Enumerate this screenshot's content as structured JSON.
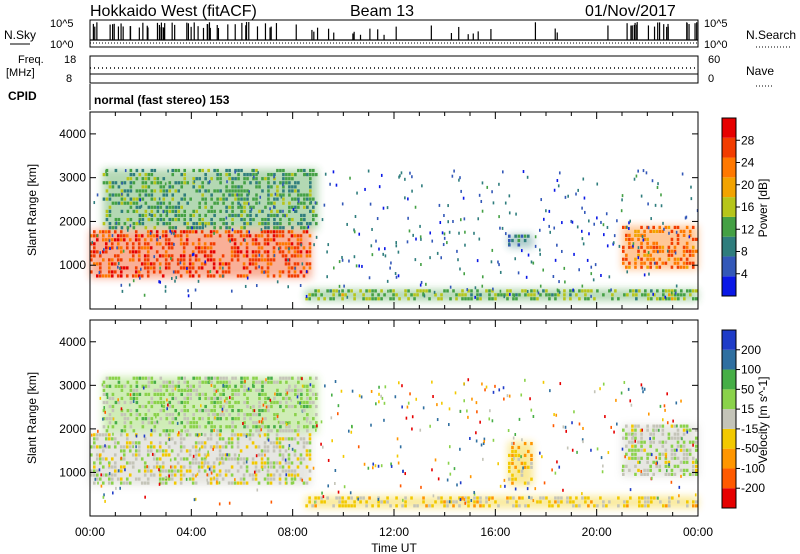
{
  "header": {
    "station": "Hokkaido West (fitACF)",
    "beam": "Beam 13",
    "date": "01/Nov/2017"
  },
  "status_panels": {
    "nsky_label": "N.Sky",
    "nsearch_label": "N.Search",
    "noise_ticks": [
      "10^5",
      "10^0"
    ],
    "freq_label": "Freq.",
    "freq_unit": "[MHz]",
    "freq_ticks": [
      "18",
      "8"
    ],
    "nave_label": "Nave",
    "nave_ticks": [
      "60",
      "0"
    ],
    "cpid_label": "CPID",
    "cpid_text": "normal (fast stereo) 153"
  },
  "colors": {
    "power_scale": [
      "#0a18e6",
      "#3358b8",
      "#2f7d7d",
      "#44a044",
      "#b6c51a",
      "#f2a300",
      "#ff7800",
      "#f23c00",
      "#e60000"
    ],
    "velocity_scale": [
      "#e60000",
      "#ff5a00",
      "#ff9600",
      "#f2c900",
      "#c4c4b8",
      "#8ad24a",
      "#46ae46",
      "#2f6fa0",
      "#1f3cc8"
    ]
  },
  "chart_data": [
    {
      "type": "heatmap",
      "title": "Power",
      "ylabel": "Slant Range [km]",
      "ylim": [
        0,
        4500
      ],
      "yticks": [
        "1000",
        "2000",
        "3000",
        "4000"
      ],
      "xlim": [
        "00:00",
        "24:00"
      ],
      "colorbar": {
        "label": "Power [dB]",
        "ticks": [
          "4",
          "8",
          "12",
          "16",
          "20",
          "24",
          "28"
        ],
        "range": [
          0,
          32
        ]
      },
      "regions": [
        {
          "time": [
            "00:00",
            "08:45"
          ],
          "range_km": [
            700,
            1800
          ],
          "level_db": 26
        },
        {
          "time": [
            "00:30",
            "09:00"
          ],
          "range_km": [
            1800,
            3200
          ],
          "level_db": 12
        },
        {
          "time": [
            "16:30",
            "17:30"
          ],
          "range_km": [
            1400,
            1700
          ],
          "level_db": 8
        },
        {
          "time": [
            "21:00",
            "24:00"
          ],
          "range_km": [
            900,
            1900
          ],
          "level_db": 24
        },
        {
          "time": [
            "08:30",
            "24:00"
          ],
          "range_km": [
            180,
            450
          ],
          "level_db": 14
        }
      ]
    },
    {
      "type": "heatmap",
      "title": "Velocity",
      "ylabel": "Slant Range [km]",
      "xlabel": "Time UT",
      "ylim": [
        0,
        4500
      ],
      "yticks": [
        "1000",
        "2000",
        "3000",
        "4000"
      ],
      "xticks": [
        "00:00",
        "04:00",
        "08:00",
        "12:00",
        "16:00",
        "20:00",
        "00:00"
      ],
      "colorbar": {
        "label": "Velocity [m s^-1]",
        "ticks": [
          "200",
          "100",
          "50",
          "15",
          "-15",
          "-50",
          "-100",
          "-200"
        ],
        "range": [
          -250,
          250
        ]
      },
      "regions": [
        {
          "time": [
            "00:00",
            "08:45"
          ],
          "range_km": [
            700,
            1900
          ],
          "velocity": 0
        },
        {
          "time": [
            "00:30",
            "09:00"
          ],
          "range_km": [
            1900,
            3200
          ],
          "velocity": 40
        },
        {
          "time": [
            "16:30",
            "17:30"
          ],
          "range_km": [
            700,
            1700
          ],
          "velocity": -60
        },
        {
          "time": [
            "21:00",
            "24:00"
          ],
          "range_km": [
            900,
            2100
          ],
          "velocity": 20
        },
        {
          "time": [
            "08:30",
            "24:00"
          ],
          "range_km": [
            180,
            450
          ],
          "velocity": -40
        }
      ]
    }
  ]
}
